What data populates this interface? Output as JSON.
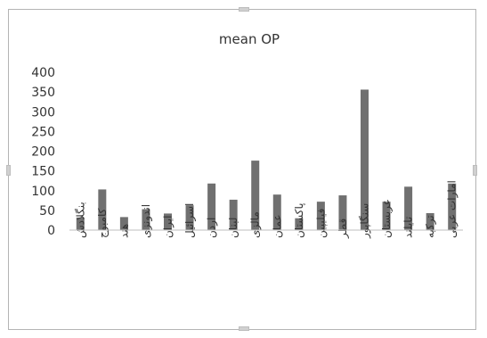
{
  "chart_data": {
    "type": "bar",
    "title": "mean OP",
    "xlabel": "",
    "ylabel": "",
    "ylim": [
      0,
      400
    ],
    "yticks": [
      0,
      50,
      100,
      150,
      200,
      250,
      300,
      350,
      400
    ],
    "grid": false,
    "bar_color": "#707070",
    "categories": [
      "بنگلادش",
      "کامبوج",
      "هند",
      "اندونزی",
      "ایران",
      "اسرائیل",
      "اردن",
      "لبنان",
      "مالزی",
      "عمان",
      "پاکستان",
      "فیلیپین",
      "قطر",
      "سنگاپور",
      "عربستان",
      "تایلند",
      "ترکیه",
      "امارات عربی"
    ],
    "values": [
      32,
      103,
      33,
      53,
      42,
      63,
      118,
      77,
      176,
      90,
      30,
      72,
      88,
      356,
      72,
      110,
      43,
      118
    ]
  }
}
